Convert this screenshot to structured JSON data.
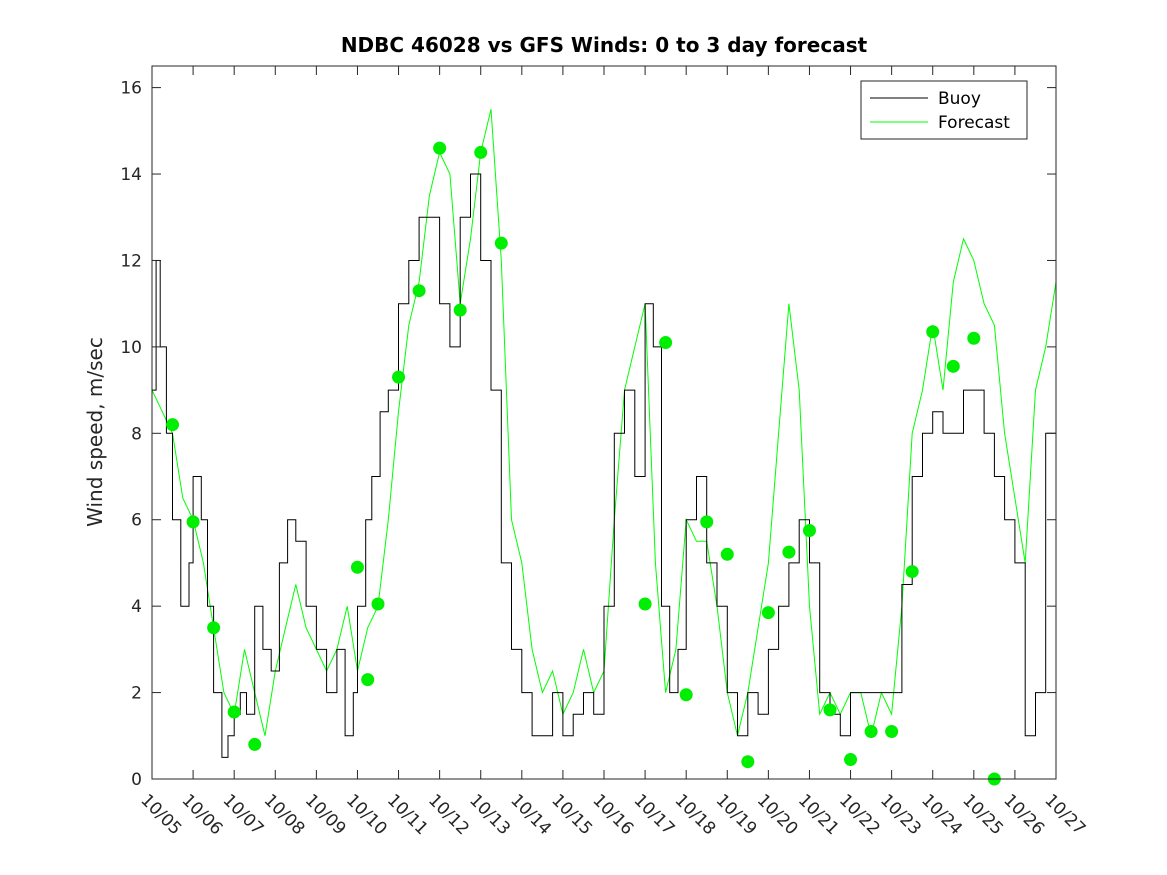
{
  "colors": {
    "buoy": "#000000",
    "forecast": "#00ff00",
    "marker": "#00ee00",
    "axis": "#262626"
  },
  "chart_data": {
    "type": "line",
    "title": "NDBC 46028 vs GFS Winds: 0 to 3 day forecast",
    "xlabel": "",
    "ylabel": "Wind speed, m/sec",
    "xlim": [
      0,
      22
    ],
    "ylim": [
      0,
      16.5
    ],
    "yticks": [
      0,
      2,
      4,
      6,
      8,
      10,
      12,
      14,
      16
    ],
    "xticks": [
      0,
      1,
      2,
      3,
      4,
      5,
      6,
      7,
      8,
      9,
      10,
      11,
      12,
      13,
      14,
      15,
      16,
      17,
      18,
      19,
      20,
      21,
      22
    ],
    "xtick_labels": [
      "10/05",
      "10/06",
      "10/07",
      "10/08",
      "10/09",
      "10/10",
      "10/11",
      "10/12",
      "10/13",
      "10/14",
      "10/15",
      "10/16",
      "10/17",
      "10/18",
      "10/19",
      "10/20",
      "10/21",
      "10/22",
      "10/23",
      "10/24",
      "10/25",
      "10/26",
      "10/27"
    ],
    "legend": {
      "position": "top-right",
      "entries": [
        "Buoy",
        "Forecast"
      ]
    },
    "series": [
      {
        "name": "Buoy",
        "x": [
          0,
          0.1,
          0.2,
          0.35,
          0.5,
          0.7,
          0.9,
          1.0,
          1.2,
          1.35,
          1.5,
          1.7,
          1.85,
          2.0,
          2.15,
          2.3,
          2.5,
          2.7,
          2.9,
          3.1,
          3.3,
          3.5,
          3.75,
          4.0,
          4.25,
          4.5,
          4.7,
          4.9,
          5.0,
          5.2,
          5.35,
          5.55,
          5.75,
          6.0,
          6.25,
          6.5,
          6.75,
          7.0,
          7.25,
          7.5,
          7.75,
          8.0,
          8.25,
          8.5,
          8.75,
          9.0,
          9.25,
          9.5,
          9.75,
          10.0,
          10.25,
          10.5,
          10.75,
          11.0,
          11.25,
          11.5,
          11.75,
          12.0,
          12.2,
          12.4,
          12.6,
          12.8,
          13.0,
          13.25,
          13.5,
          13.75,
          14.0,
          14.25,
          14.5,
          14.75,
          15.0,
          15.25,
          15.5,
          15.75,
          16.0,
          16.25,
          16.5,
          16.75,
          17.0,
          17.25,
          17.5,
          17.75,
          18.0,
          18.25,
          18.5,
          18.75,
          19.0,
          19.25,
          19.5,
          19.75,
          20.0,
          20.25,
          20.5,
          20.75,
          21.0,
          21.25,
          21.5,
          21.75,
          22.0
        ],
        "y": [
          9,
          12,
          10,
          8,
          6,
          4,
          5,
          7,
          6,
          4,
          2,
          0.5,
          1,
          1.5,
          2,
          1.5,
          4,
          3,
          2.5,
          5,
          6,
          5.5,
          4,
          3,
          2,
          3,
          1,
          2,
          4,
          6,
          7,
          8.5,
          9,
          11,
          12,
          13,
          13,
          11,
          10,
          13,
          14,
          12,
          9,
          5,
          3,
          2,
          1,
          1,
          2,
          1,
          1.5,
          2,
          1.5,
          4,
          8,
          9,
          7,
          11,
          10,
          4,
          2,
          3,
          6,
          7,
          5,
          4,
          2,
          1,
          2,
          1.5,
          3,
          4,
          5,
          6,
          5,
          2,
          1.5,
          1,
          2,
          2,
          2,
          2,
          2,
          4.5,
          7,
          8,
          8.5,
          8,
          8,
          9,
          9,
          8,
          7,
          6,
          5,
          1,
          2,
          8,
          8
        ]
      },
      {
        "name": "Forecast",
        "x": [
          0,
          0.25,
          0.5,
          0.75,
          1.0,
          1.25,
          1.5,
          1.75,
          2.0,
          2.25,
          2.5,
          2.75,
          3.0,
          3.25,
          3.5,
          3.75,
          4.0,
          4.25,
          4.5,
          4.75,
          5.0,
          5.25,
          5.5,
          5.75,
          6.0,
          6.25,
          6.5,
          6.75,
          7.0,
          7.25,
          7.5,
          7.75,
          8.0,
          8.25,
          8.5,
          8.75,
          9.0,
          9.25,
          9.5,
          9.75,
          10.0,
          10.25,
          10.5,
          10.75,
          11.0,
          11.25,
          11.5,
          11.75,
          12.0,
          12.25,
          12.5,
          12.75,
          13.0,
          13.25,
          13.5,
          13.75,
          14.0,
          14.25,
          14.5,
          14.75,
          15.0,
          15.25,
          15.5,
          15.75,
          16.0,
          16.25,
          16.5,
          16.75,
          17.0,
          17.25,
          17.5,
          17.75,
          18.0,
          18.25,
          18.5,
          18.75,
          19.0,
          19.25,
          19.5,
          19.75,
          20.0,
          20.25,
          20.5,
          20.75,
          21.0,
          21.25,
          21.5,
          21.75,
          22.0
        ],
        "y": [
          9,
          8.5,
          8,
          6.5,
          6,
          5,
          3.5,
          2,
          1.5,
          3,
          2,
          1,
          2.5,
          3.5,
          4.5,
          3.5,
          3,
          2.5,
          3,
          4,
          2.5,
          3.5,
          4,
          6,
          8.5,
          10.5,
          11.5,
          13.5,
          14.5,
          14,
          11,
          12.5,
          14.5,
          15.5,
          12,
          6,
          5,
          3,
          2,
          2.5,
          1.5,
          2,
          3,
          2,
          2.5,
          6,
          9,
          10,
          11,
          5,
          2,
          3,
          6,
          5.5,
          5.5,
          4,
          2,
          1,
          2,
          3.5,
          5,
          8,
          11,
          9,
          4,
          1.5,
          2,
          1.5,
          2,
          2,
          1,
          2,
          1.5,
          4,
          8,
          9,
          10.5,
          9,
          11.5,
          12.5,
          12,
          11,
          10.5,
          8,
          6.5,
          5,
          9,
          10,
          11.5
        ]
      },
      {
        "name": "Forecast initial points",
        "type": "scatter",
        "x": [
          0.5,
          1.0,
          1.5,
          2.0,
          2.5,
          5.0,
          5.25,
          5.5,
          6.0,
          6.5,
          7.0,
          7.5,
          8.0,
          8.5,
          12.0,
          12.5,
          13.0,
          13.5,
          14.0,
          14.5,
          15.0,
          15.5,
          16.0,
          16.5,
          17.0,
          17.5,
          18.0,
          18.5,
          19.0,
          19.5,
          20.0,
          20.5
        ],
        "y": [
          8.2,
          5.95,
          3.5,
          1.55,
          0.8,
          4.9,
          2.3,
          4.05,
          9.3,
          11.3,
          14.6,
          10.85,
          14.5,
          12.4,
          4.05,
          10.1,
          1.95,
          5.95,
          5.2,
          0.4,
          3.85,
          5.25,
          5.75,
          1.6,
          0.45,
          1.1,
          1.1,
          4.8,
          10.35,
          9.55,
          10.2,
          0
        ]
      }
    ]
  }
}
